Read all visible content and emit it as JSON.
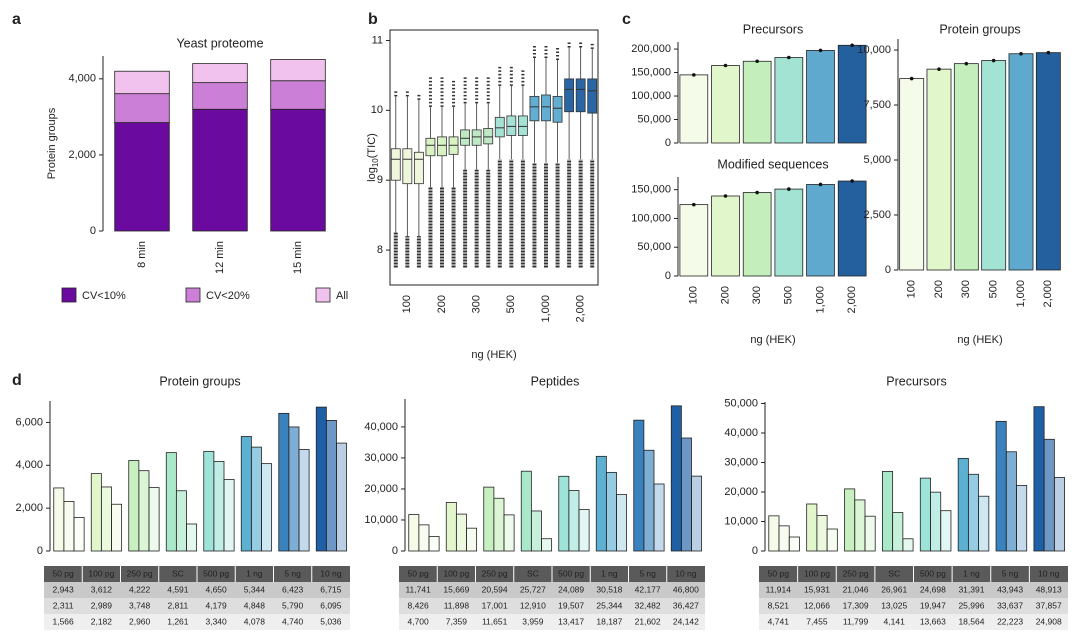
{
  "panel_labels": [
    "a",
    "b",
    "c",
    "d"
  ],
  "chart_data": [
    {
      "type": "stacked_bar",
      "title": "Yeast proteome",
      "ylabel": "Protein groups",
      "categories": [
        "8 min",
        "12 min",
        "15 min"
      ],
      "series": [
        {
          "name": "CV<10%",
          "color": "#6a0a9e",
          "values": [
            2850,
            3200,
            3200
          ]
        },
        {
          "name": "CV<20%",
          "color": "#cc7fd6",
          "values": [
            760,
            700,
            750
          ]
        },
        {
          "name": "All",
          "color": "#f2c2ee",
          "values": [
            590,
            500,
            560
          ]
        }
      ],
      "ylim": [
        0,
        4600
      ],
      "yticks": [
        0,
        {
          "value": 2000,
          "label": "2,000"
        },
        {
          "value": 4000,
          "label": "4,000"
        }
      ]
    },
    {
      "type": "box",
      "ylabel": "log",
      "ylabel_sub": "10",
      "ylabel_end": "(TIC)",
      "xlabel": "ng (HEK)",
      "categories": [
        "100",
        "200",
        "300",
        "500",
        "1,000",
        "2,000"
      ],
      "colors": [
        "#eef7dc",
        "#d9f2c4",
        "#bfe9c4",
        "#a5e2d6",
        "#62aed2",
        "#2a66a6"
      ],
      "groups": [
        [
          {
            "min": 7.75,
            "whislo": 8.25,
            "q1": 9.0,
            "med": 9.3,
            "q3": 9.45,
            "whishi": 10.2,
            "max": 10.3
          },
          {
            "min": 7.75,
            "whislo": 8.2,
            "q1": 8.95,
            "med": 9.3,
            "q3": 9.45,
            "whishi": 10.2,
            "max": 10.3
          },
          {
            "min": 7.75,
            "whislo": 8.2,
            "q1": 8.95,
            "med": 9.3,
            "q3": 9.4,
            "whishi": 10.15,
            "max": 10.25
          }
        ],
        [
          {
            "min": 7.75,
            "whislo": 8.9,
            "q1": 9.35,
            "med": 9.5,
            "q3": 9.6,
            "whishi": 10.05,
            "max": 10.5
          },
          {
            "min": 7.75,
            "whislo": 8.9,
            "q1": 9.35,
            "med": 9.5,
            "q3": 9.62,
            "whishi": 10.05,
            "max": 10.5
          },
          {
            "min": 7.75,
            "whislo": 8.9,
            "q1": 9.37,
            "med": 9.5,
            "q3": 9.62,
            "whishi": 10.05,
            "max": 10.45
          }
        ],
        [
          {
            "min": 7.75,
            "whislo": 9.15,
            "q1": 9.5,
            "med": 9.6,
            "q3": 9.72,
            "whishi": 10.1,
            "max": 10.5
          },
          {
            "min": 7.75,
            "whislo": 9.15,
            "q1": 9.5,
            "med": 9.62,
            "q3": 9.72,
            "whishi": 10.1,
            "max": 10.5
          },
          {
            "min": 7.75,
            "whislo": 9.15,
            "q1": 9.52,
            "med": 9.62,
            "q3": 9.74,
            "whishi": 10.1,
            "max": 10.5
          }
        ],
        [
          {
            "min": 7.75,
            "whislo": 9.3,
            "q1": 9.62,
            "med": 9.75,
            "q3": 9.9,
            "whishi": 10.35,
            "max": 10.65
          },
          {
            "min": 7.75,
            "whislo": 9.3,
            "q1": 9.64,
            "med": 9.77,
            "q3": 9.92,
            "whishi": 10.35,
            "max": 10.65
          },
          {
            "min": 7.75,
            "whislo": 9.3,
            "q1": 9.64,
            "med": 9.77,
            "q3": 9.92,
            "whishi": 10.35,
            "max": 10.6
          }
        ],
        [
          {
            "min": 7.75,
            "whislo": 9.25,
            "q1": 9.85,
            "med": 10.05,
            "q3": 10.2,
            "whishi": 10.75,
            "max": 10.95
          },
          {
            "min": 7.75,
            "whislo": 9.25,
            "q1": 9.85,
            "med": 10.05,
            "q3": 10.22,
            "whishi": 10.75,
            "max": 10.95
          },
          {
            "min": 7.75,
            "whislo": 9.25,
            "q1": 9.83,
            "med": 10.03,
            "q3": 10.2,
            "whishi": 10.72,
            "max": 10.9
          }
        ],
        [
          {
            "min": 7.75,
            "whislo": 9.3,
            "q1": 9.98,
            "med": 10.3,
            "q3": 10.45,
            "whishi": 10.9,
            "max": 11.0
          },
          {
            "min": 7.75,
            "whislo": 9.3,
            "q1": 9.98,
            "med": 10.3,
            "q3": 10.45,
            "whishi": 10.9,
            "max": 11.0
          },
          {
            "min": 7.75,
            "whislo": 9.3,
            "q1": 9.96,
            "med": 10.28,
            "q3": 10.45,
            "whishi": 10.88,
            "max": 10.98
          }
        ]
      ],
      "ylim": [
        7.5,
        11.15
      ],
      "yticks": [
        8,
        9,
        10,
        11
      ]
    },
    {
      "type": "bar",
      "title": "Precursors",
      "colors": [
        "#f4fbe8",
        "#e2f6cc",
        "#c4eebc",
        "#a2e3d4",
        "#5fa9cf",
        "#245f9e"
      ],
      "values": [
        145000,
        165000,
        174000,
        182000,
        197000,
        208000
      ],
      "ylim": [
        0,
        215000
      ],
      "yticks": [
        0,
        {
          "value": 50000,
          "label": "50,000"
        },
        {
          "value": 100000,
          "label": "100,000"
        },
        {
          "value": 150000,
          "label": "150,000"
        },
        {
          "value": 200000,
          "label": "200,000"
        }
      ]
    },
    {
      "type": "bar",
      "title": "Modified sequences",
      "xlabel": "ng (HEK)",
      "categories": [
        "100",
        "200",
        "300",
        "500",
        "1,000",
        "2,000"
      ],
      "colors": [
        "#f4fbe8",
        "#e2f6cc",
        "#c4eebc",
        "#a2e3d4",
        "#5fa9cf",
        "#245f9e"
      ],
      "values": [
        124000,
        139000,
        145000,
        151000,
        159000,
        165000
      ],
      "ylim": [
        0,
        172000
      ],
      "yticks": [
        0,
        {
          "value": 50000,
          "label": "50,000"
        },
        {
          "value": 100000,
          "label": "100,000"
        },
        {
          "value": 150000,
          "label": "150,000"
        }
      ]
    },
    {
      "type": "bar",
      "title": "Protein groups",
      "xlabel": "ng (HEK)",
      "categories": [
        "100",
        "200",
        "300",
        "500",
        "1,000",
        "2,000"
      ],
      "colors": [
        "#f4fbe8",
        "#e2f6cc",
        "#c4eebc",
        "#a2e3d4",
        "#5fa9cf",
        "#245f9e"
      ],
      "values": [
        8700,
        9130,
        9380,
        9520,
        9830,
        9880
      ],
      "ylim": [
        0,
        10500
      ],
      "yticks": [
        0,
        {
          "value": 2500,
          "label": "2,500"
        },
        {
          "value": 5000,
          "label": "5,000"
        },
        {
          "value": 7500,
          "label": "7,500"
        },
        {
          "value": 10000,
          "label": "10,000"
        }
      ]
    },
    {
      "type": "grouped_bar_table",
      "title": "Protein groups",
      "categories": [
        "50 pg",
        "100 pg",
        "250 pg",
        "SC",
        "500 pg",
        "1 ng",
        "5 ng",
        "10 ng"
      ],
      "colors": [
        "#f4fbe8",
        "#e2f6cc",
        "#c8efbf",
        "#a9e8c8",
        "#9ee3d8",
        "#5cb0d2",
        "#3a82bd",
        "#1f5fa6"
      ],
      "shades": [
        1,
        0.65,
        0.3
      ],
      "series": [
        {
          "values": [
            2943,
            3612,
            4222,
            4591,
            4650,
            5344,
            6423,
            6715
          ],
          "value_labels": [
            "2,943",
            "3,612",
            "4,222",
            "4,591",
            "4,650",
            "5,344",
            "6,423",
            "6,715"
          ]
        },
        {
          "values": [
            2311,
            2989,
            3748,
            2811,
            4179,
            4848,
            5790,
            6095
          ],
          "value_labels": [
            "2,311",
            "2,989",
            "3,748",
            "2,811",
            "4,179",
            "4,848",
            "5,790",
            "6,095"
          ]
        },
        {
          "values": [
            1566,
            2182,
            2960,
            1261,
            3340,
            4078,
            4740,
            5036
          ],
          "value_labels": [
            "1,566",
            "2,182",
            "2,960",
            "1,261",
            "3,340",
            "4,078",
            "4,740",
            "5,036"
          ]
        }
      ],
      "ylim": [
        0,
        7000
      ],
      "yticks": [
        0,
        {
          "value": 2000,
          "label": "2,000"
        },
        {
          "value": 4000,
          "label": "4,000"
        },
        {
          "value": 6000,
          "label": "6,000"
        }
      ]
    },
    {
      "type": "grouped_bar_table",
      "title": "Peptides",
      "categories": [
        "50 pg",
        "100 pg",
        "250 pg",
        "SC",
        "500 pg",
        "1 ng",
        "5 ng",
        "10 ng"
      ],
      "colors": [
        "#f4fbe8",
        "#e2f6cc",
        "#c8efbf",
        "#a9e8c8",
        "#9ee3d8",
        "#5cb0d2",
        "#3a82bd",
        "#1f5fa6"
      ],
      "shades": [
        1,
        0.65,
        0.3
      ],
      "series": [
        {
          "values": [
            11741,
            15669,
            20594,
            25727,
            24089,
            30518,
            42177,
            46800
          ],
          "value_labels": [
            "11,741",
            "15,669",
            "20,594",
            "25,727",
            "24,089",
            "30,518",
            "42,177",
            "46,800"
          ]
        },
        {
          "values": [
            8426,
            11898,
            17001,
            12910,
            19507,
            25344,
            32482,
            36427
          ],
          "value_labels": [
            "8,426",
            "11,898",
            "17,001",
            "12,910",
            "19,507",
            "25,344",
            "32,482",
            "36,427"
          ]
        },
        {
          "values": [
            4700,
            7359,
            11651,
            3959,
            13417,
            18187,
            21602,
            24142
          ],
          "value_labels": [
            "4,700",
            "7,359",
            "11,651",
            "3,959",
            "13,417",
            "18,187",
            "21,602",
            "24,142"
          ]
        }
      ],
      "ylim": [
        0,
        49000
      ],
      "yticks": [
        0,
        {
          "value": 10000,
          "label": "10,000"
        },
        {
          "value": 20000,
          "label": "20,000"
        },
        {
          "value": 30000,
          "label": "30,000"
        },
        {
          "value": 40000,
          "label": "40,000"
        }
      ]
    },
    {
      "type": "grouped_bar_table",
      "title": "Precursors",
      "categories": [
        "50 pg",
        "100 pg",
        "250 pg",
        "SC",
        "500 pg",
        "1 ng",
        "5 ng",
        "10 ng"
      ],
      "colors": [
        "#f4fbe8",
        "#e2f6cc",
        "#c8efbf",
        "#a9e8c8",
        "#9ee3d8",
        "#5cb0d2",
        "#3a82bd",
        "#1f5fa6"
      ],
      "shades": [
        1,
        0.65,
        0.3
      ],
      "series": [
        {
          "values": [
            11914,
            15931,
            21046,
            26961,
            24698,
            31391,
            43943,
            48913
          ],
          "value_labels": [
            "11,914",
            "15,931",
            "21,046",
            "26,961",
            "24,698",
            "31,391",
            "43,943",
            "48,913"
          ]
        },
        {
          "values": [
            8521,
            12066,
            17309,
            13025,
            19947,
            25996,
            33637,
            37857
          ],
          "value_labels": [
            "8,521",
            "12,066",
            "17,309",
            "13,025",
            "19,947",
            "25,996",
            "33,637",
            "37,857"
          ]
        },
        {
          "values": [
            4741,
            7455,
            11799,
            4141,
            13663,
            18564,
            22223,
            24908
          ],
          "value_labels": [
            "4,741",
            "7,455",
            "11,799",
            "4,141",
            "13,663",
            "18,564",
            "22,223",
            "24,908"
          ]
        }
      ],
      "ylim": [
        0,
        50500
      ],
      "yticks": [
        0,
        {
          "value": 10000,
          "label": "10,000"
        },
        {
          "value": 20000,
          "label": "20,000"
        },
        {
          "value": 30000,
          "label": "30,000"
        },
        {
          "value": 40000,
          "label": "40,000"
        },
        {
          "value": 50000,
          "label": "50,000"
        }
      ]
    }
  ]
}
